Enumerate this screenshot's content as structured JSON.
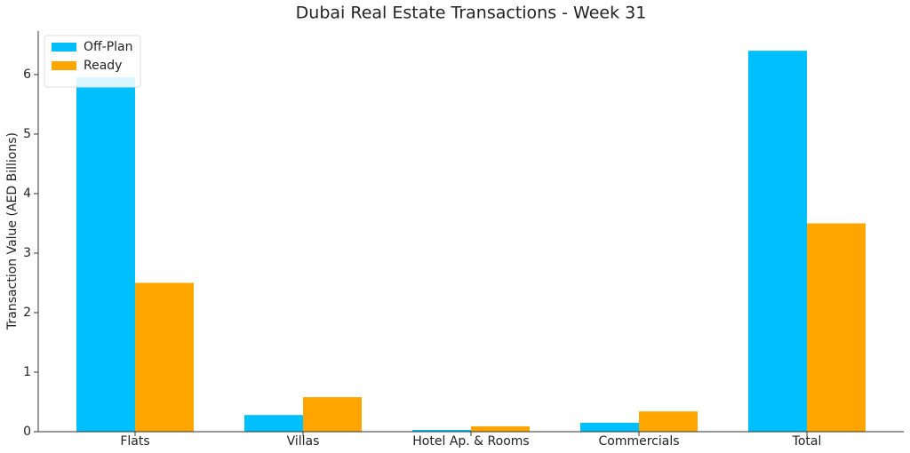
{
  "chart_data": {
    "type": "bar",
    "title": "Dubai Real Estate Transactions - Week 31",
    "y_label": "Transaction Value (AED Billions)",
    "categories": [
      "Flats",
      "Villas",
      "Hotel Ap. & Rooms",
      "Commercials",
      "Total"
    ],
    "series": [
      {
        "name": "Off-Plan",
        "color": "#00bfff",
        "values": [
          5.95,
          0.28,
          0.03,
          0.15,
          6.4
        ]
      },
      {
        "name": "Ready",
        "color": "#ffa500",
        "values": [
          2.5,
          0.58,
          0.09,
          0.34,
          3.5
        ]
      }
    ],
    "ylim": [
      0,
      6.73
    ],
    "yticks": [
      0,
      1,
      2,
      3,
      4,
      5,
      6
    ],
    "grid": false,
    "legend": "upper-left"
  }
}
